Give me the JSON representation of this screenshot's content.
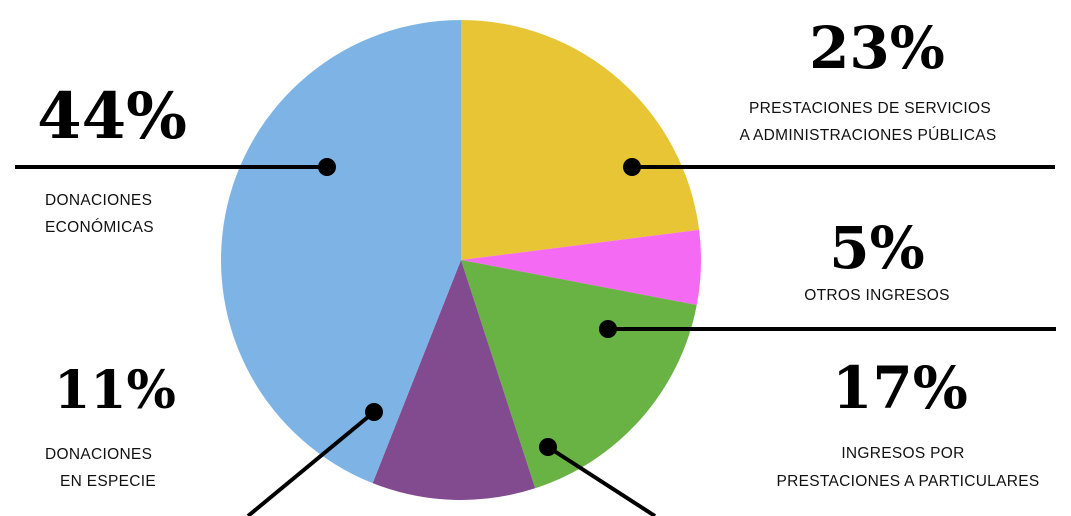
{
  "chart_data": {
    "type": "pie",
    "slices": [
      {
        "key": "servicios",
        "value": 23,
        "percent_label": "23%",
        "label_lines": [
          "PRESTACIONES DE SERVICIOS",
          "A ADMINISTRACIONES PÚBLICAS"
        ],
        "color": "#e8c535"
      },
      {
        "key": "otros",
        "value": 5,
        "percent_label": "5%",
        "label_lines": [
          "OTROS INGRESOS"
        ],
        "color": "#f56af2"
      },
      {
        "key": "particulares",
        "value": 17,
        "percent_label": "17%",
        "label_lines": [
          "INGRESOS POR",
          "PRESTACIONES A PARTICULARES"
        ],
        "color": "#69b244"
      },
      {
        "key": "especie",
        "value": 11,
        "percent_label": "11%",
        "label_lines": [
          "DONACIONES",
          "EN ESPECIE"
        ],
        "color": "#824a8f"
      },
      {
        "key": "economicas",
        "value": 44,
        "percent_label": "44%",
        "label_lines": [
          "DONACIONES",
          "ECONÓMICAS"
        ],
        "color": "#7eb4e5"
      }
    ],
    "start_position": "top, clockwise",
    "legend": "none"
  }
}
